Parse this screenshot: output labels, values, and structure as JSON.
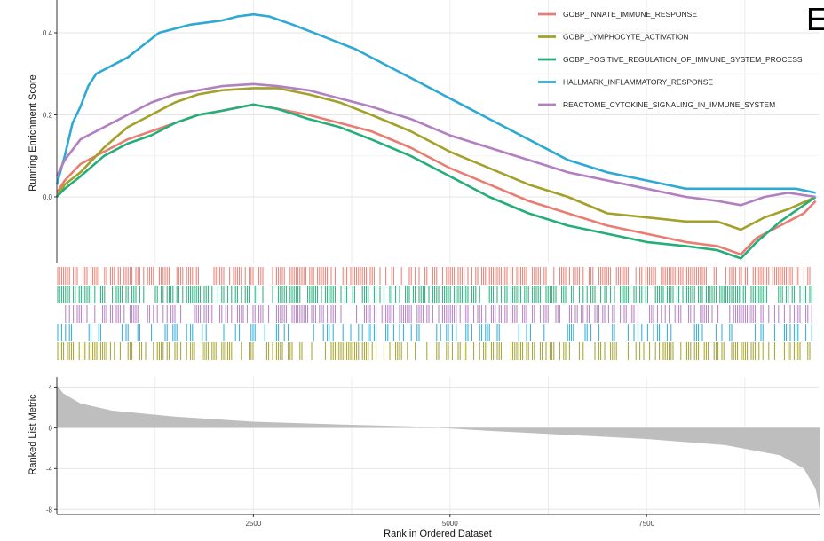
{
  "panel_label": "E",
  "chart_data": {
    "type": "line",
    "x_range": [
      0,
      9700
    ],
    "top_panel": {
      "ylabel": "Running Enrichment Score",
      "ylim": [
        -0.16,
        0.48
      ],
      "yticks": [
        0.0,
        0.2,
        0.4
      ],
      "ytick_labels": [
        "0.0",
        "0.2",
        "0.4"
      ]
    },
    "bottom_panel": {
      "ylabel": "Ranked List Metric",
      "ylim": [
        -8.5,
        5
      ],
      "yticks": [
        4,
        0,
        -4,
        -8
      ],
      "ytick_labels": [
        "4",
        "0",
        "-4",
        "-8"
      ],
      "metric_curve": [
        {
          "x": 0,
          "y": 4.2
        },
        {
          "x": 80,
          "y": 3.4
        },
        {
          "x": 300,
          "y": 2.4
        },
        {
          "x": 700,
          "y": 1.7
        },
        {
          "x": 1500,
          "y": 1.1
        },
        {
          "x": 2500,
          "y": 0.6
        },
        {
          "x": 3500,
          "y": 0.35
        },
        {
          "x": 4500,
          "y": 0.15
        },
        {
          "x": 4850,
          "y": 0.0
        },
        {
          "x": 5500,
          "y": -0.3
        },
        {
          "x": 6500,
          "y": -0.7
        },
        {
          "x": 7500,
          "y": -1.1
        },
        {
          "x": 8500,
          "y": -1.7
        },
        {
          "x": 9200,
          "y": -2.7
        },
        {
          "x": 9500,
          "y": -4.0
        },
        {
          "x": 9650,
          "y": -6.0
        },
        {
          "x": 9700,
          "y": -8.0
        }
      ]
    },
    "xlabel": "Rank in Ordered Dataset",
    "xticks": [
      2500,
      5000,
      7500
    ],
    "xtick_labels": [
      "2500",
      "5000",
      "7500"
    ],
    "legend_position": "top-right",
    "series": [
      {
        "name": "GOBP_INNATE_IMMUNE_RESPONSE",
        "color": "#E87D72",
        "points": [
          [
            0,
            0.01
          ],
          [
            100,
            0.04
          ],
          [
            300,
            0.08
          ],
          [
            600,
            0.11
          ],
          [
            900,
            0.14
          ],
          [
            1200,
            0.16
          ],
          [
            1500,
            0.18
          ],
          [
            1800,
            0.2
          ],
          [
            2100,
            0.21
          ],
          [
            2500,
            0.225
          ],
          [
            2800,
            0.215
          ],
          [
            3200,
            0.2
          ],
          [
            3600,
            0.18
          ],
          [
            4000,
            0.16
          ],
          [
            4500,
            0.12
          ],
          [
            5000,
            0.07
          ],
          [
            5500,
            0.03
          ],
          [
            6000,
            -0.01
          ],
          [
            6500,
            -0.04
          ],
          [
            7000,
            -0.07
          ],
          [
            7500,
            -0.09
          ],
          [
            8000,
            -0.11
          ],
          [
            8400,
            -0.12
          ],
          [
            8700,
            -0.14
          ],
          [
            8900,
            -0.1
          ],
          [
            9200,
            -0.07
          ],
          [
            9500,
            -0.04
          ],
          [
            9650,
            -0.01
          ]
        ],
        "hits": {
          "rows": 1,
          "density": 0.62
        }
      },
      {
        "name": "GOBP_LYMPHOCYTE_ACTIVATION",
        "color": "#A3A12A",
        "points": [
          [
            0,
            0.0
          ],
          [
            100,
            0.03
          ],
          [
            300,
            0.06
          ],
          [
            600,
            0.12
          ],
          [
            900,
            0.17
          ],
          [
            1200,
            0.2
          ],
          [
            1500,
            0.23
          ],
          [
            1800,
            0.25
          ],
          [
            2100,
            0.26
          ],
          [
            2500,
            0.265
          ],
          [
            2800,
            0.265
          ],
          [
            3200,
            0.25
          ],
          [
            3600,
            0.23
          ],
          [
            4000,
            0.2
          ],
          [
            4500,
            0.16
          ],
          [
            5000,
            0.11
          ],
          [
            5500,
            0.07
          ],
          [
            6000,
            0.03
          ],
          [
            6500,
            0.0
          ],
          [
            7000,
            -0.04
          ],
          [
            7500,
            -0.05
          ],
          [
            8000,
            -0.06
          ],
          [
            8400,
            -0.06
          ],
          [
            8700,
            -0.08
          ],
          [
            9000,
            -0.05
          ],
          [
            9300,
            -0.03
          ],
          [
            9650,
            0.0
          ]
        ],
        "hits": {
          "rows": 5,
          "density": 0.5
        }
      },
      {
        "name": "GOBP_POSITIVE_REGULATION_OF_IMMUNE_SYSTEM_PROCESS",
        "color": "#26AE7A",
        "points": [
          [
            0,
            0.0
          ],
          [
            100,
            0.02
          ],
          [
            300,
            0.05
          ],
          [
            600,
            0.1
          ],
          [
            900,
            0.13
          ],
          [
            1200,
            0.15
          ],
          [
            1500,
            0.18
          ],
          [
            1800,
            0.2
          ],
          [
            2100,
            0.21
          ],
          [
            2500,
            0.225
          ],
          [
            2800,
            0.215
          ],
          [
            3200,
            0.19
          ],
          [
            3600,
            0.17
          ],
          [
            4000,
            0.14
          ],
          [
            4500,
            0.1
          ],
          [
            5000,
            0.05
          ],
          [
            5500,
            0.0
          ],
          [
            6000,
            -0.04
          ],
          [
            6500,
            -0.07
          ],
          [
            7000,
            -0.09
          ],
          [
            7500,
            -0.11
          ],
          [
            8000,
            -0.12
          ],
          [
            8400,
            -0.13
          ],
          [
            8700,
            -0.15
          ],
          [
            8900,
            -0.11
          ],
          [
            9200,
            -0.06
          ],
          [
            9500,
            -0.02
          ],
          [
            9650,
            0.0
          ]
        ],
        "hits": {
          "rows": 2,
          "density": 0.7
        }
      },
      {
        "name": "HALLMARK_INFLAMMATORY_RESPONSE",
        "color": "#2EA9D4",
        "points": [
          [
            0,
            0.03
          ],
          [
            100,
            0.1
          ],
          [
            200,
            0.18
          ],
          [
            300,
            0.22
          ],
          [
            400,
            0.27
          ],
          [
            500,
            0.3
          ],
          [
            700,
            0.32
          ],
          [
            900,
            0.34
          ],
          [
            1100,
            0.37
          ],
          [
            1300,
            0.4
          ],
          [
            1500,
            0.41
          ],
          [
            1700,
            0.42
          ],
          [
            1900,
            0.425
          ],
          [
            2100,
            0.43
          ],
          [
            2300,
            0.44
          ],
          [
            2500,
            0.445
          ],
          [
            2700,
            0.44
          ],
          [
            3000,
            0.42
          ],
          [
            3400,
            0.39
          ],
          [
            3800,
            0.36
          ],
          [
            4200,
            0.32
          ],
          [
            4600,
            0.28
          ],
          [
            5000,
            0.24
          ],
          [
            5500,
            0.19
          ],
          [
            6000,
            0.14
          ],
          [
            6500,
            0.09
          ],
          [
            7000,
            0.06
          ],
          [
            7500,
            0.04
          ],
          [
            8000,
            0.02
          ],
          [
            8500,
            0.02
          ],
          [
            9000,
            0.02
          ],
          [
            9400,
            0.02
          ],
          [
            9650,
            0.01
          ]
        ],
        "hits": {
          "rows": 4,
          "density": 0.3
        }
      },
      {
        "name": "REACTOME_CYTOKINE_SIGNALING_IN_IMMUNE_SYSTEM",
        "color": "#B27FC1",
        "points": [
          [
            0,
            0.05
          ],
          [
            100,
            0.09
          ],
          [
            300,
            0.14
          ],
          [
            600,
            0.17
          ],
          [
            900,
            0.2
          ],
          [
            1200,
            0.23
          ],
          [
            1500,
            0.25
          ],
          [
            1800,
            0.26
          ],
          [
            2100,
            0.27
          ],
          [
            2500,
            0.275
          ],
          [
            2800,
            0.27
          ],
          [
            3200,
            0.26
          ],
          [
            3600,
            0.24
          ],
          [
            4000,
            0.22
          ],
          [
            4500,
            0.19
          ],
          [
            5000,
            0.15
          ],
          [
            5500,
            0.12
          ],
          [
            6000,
            0.09
          ],
          [
            6500,
            0.06
          ],
          [
            7000,
            0.04
          ],
          [
            7500,
            0.02
          ],
          [
            8000,
            0.0
          ],
          [
            8400,
            -0.01
          ],
          [
            8700,
            -0.02
          ],
          [
            9000,
            0.0
          ],
          [
            9300,
            0.01
          ],
          [
            9650,
            0.0
          ]
        ],
        "hits": {
          "rows": 3,
          "density": 0.55
        }
      }
    ]
  }
}
